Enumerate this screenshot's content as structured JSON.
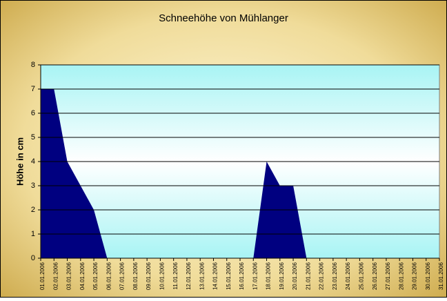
{
  "chart_data": {
    "type": "area",
    "title": "Schneehöhe von Mühlanger",
    "y_label": "Höhe in cm",
    "categories": [
      "01.01.2006",
      "02.01.2006",
      "03.01.2006",
      "04.01.2006",
      "05.01.2006",
      "06.01.2006",
      "07.01.2006",
      "08.01.2006",
      "09.01.2006",
      "10.01.2006",
      "11.01.2006",
      "12.01.2006",
      "13.01.2006",
      "14.01.2006",
      "15.01.2006",
      "16.01.2006",
      "17.01.2006",
      "18.01.2006",
      "19.01.2006",
      "20.01.2006",
      "21.01.2006",
      "22.01.2006",
      "23.01.2006",
      "24.01.2006",
      "25.01.2006",
      "26.01.2006",
      "27.01.2006",
      "28.01.2006",
      "29.01.2006",
      "30.01.2006",
      "31.01.2006"
    ],
    "values": [
      7,
      7,
      4,
      3,
      2,
      0,
      0,
      0,
      0,
      0,
      0,
      0,
      0,
      0,
      0,
      0,
      0,
      4,
      3,
      3,
      0,
      0,
      0,
      0,
      0,
      0,
      0,
      0,
      0,
      0,
      0
    ],
    "color": "#000080",
    "ylim": [
      0,
      8
    ],
    "yticks": [
      0,
      1,
      2,
      3,
      4,
      5,
      6,
      7,
      8
    ],
    "grid": true
  }
}
